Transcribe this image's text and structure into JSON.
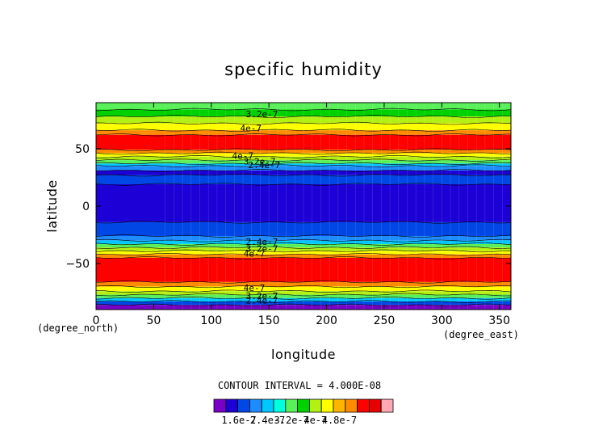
{
  "chart_data": {
    "type": "heatmap",
    "title": "specific humidity",
    "xlabel": "longitude",
    "ylabel": "latitude",
    "x_unit": "(degree_east)",
    "y_unit": "(degree_north)",
    "xlim": [
      0,
      360
    ],
    "ylim": [
      -90,
      90
    ],
    "x_ticks": [
      0,
      50,
      100,
      150,
      200,
      250,
      300,
      350
    ],
    "y_ticks": [
      -50,
      0,
      50
    ],
    "contour_interval_label": "CONTOUR INTERVAL = 4.000E-08",
    "colorbar_labels": [
      "1.6e-7",
      "2.4e-7",
      "3.2e-7",
      "4e-7",
      "4.8e-7"
    ],
    "colorbar_colors": [
      "#7a00c8",
      "#1c00d6",
      "#0047e6",
      "#1e8cff",
      "#00c8ff",
      "#00ffdc",
      "#5af05a",
      "#00d200",
      "#b4f014",
      "#ffff00",
      "#ffb400",
      "#ff8c00",
      "#ff0000",
      "#e60000",
      "#ffa8b4"
    ],
    "contour_labels": [
      {
        "text": "3.2e-7",
        "lon": 130,
        "lat": 80
      },
      {
        "text": "4e-7",
        "lon": 125,
        "lat": 68
      },
      {
        "text": "4e-7",
        "lon": 118,
        "lat": 44
      },
      {
        "text": "3.2e-7",
        "lon": 128,
        "lat": 39
      },
      {
        "text": "2.4e-7",
        "lon": 132,
        "lat": 36
      },
      {
        "text": "2.4e-7",
        "lon": 130,
        "lat": -31
      },
      {
        "text": "3.2e-7",
        "lon": 130,
        "lat": -37
      },
      {
        "text": "4e-7",
        "lon": 128,
        "lat": -41
      },
      {
        "text": "4e-7",
        "lon": 128,
        "lat": -71
      },
      {
        "text": "3.2e-7",
        "lon": 130,
        "lat": -78
      },
      {
        "text": "2.4e-7",
        "lon": 130,
        "lat": -82
      }
    ],
    "bands": [
      {
        "lat_top": 90,
        "lat_bottom": 84,
        "level": 6
      },
      {
        "lat_top": 84,
        "lat_bottom": 78,
        "level": 7
      },
      {
        "lat_top": 78,
        "lat_bottom": 72,
        "level": 8
      },
      {
        "lat_top": 72,
        "lat_bottom": 66,
        "level": 9
      },
      {
        "lat_top": 66,
        "lat_bottom": 62,
        "level": 11
      },
      {
        "lat_top": 62,
        "lat_bottom": 49,
        "level": 12
      },
      {
        "lat_top": 49,
        "lat_bottom": 46,
        "level": 11
      },
      {
        "lat_top": 46,
        "lat_bottom": 43,
        "level": 9
      },
      {
        "lat_top": 43,
        "lat_bottom": 40,
        "level": 8
      },
      {
        "lat_top": 40,
        "lat_bottom": 37,
        "level": 6
      },
      {
        "lat_top": 37,
        "lat_bottom": 35,
        "level": 4
      },
      {
        "lat_top": 35,
        "lat_bottom": 31,
        "level": 3
      },
      {
        "lat_top": 31,
        "lat_bottom": 27,
        "level": 1
      },
      {
        "lat_top": 27,
        "lat_bottom": 19,
        "level": 2
      },
      {
        "lat_top": 19,
        "lat_bottom": -14,
        "level": 1
      },
      {
        "lat_top": -14,
        "lat_bottom": -26,
        "level": 2
      },
      {
        "lat_top": -26,
        "lat_bottom": -30,
        "level": 3
      },
      {
        "lat_top": -30,
        "lat_bottom": -33,
        "level": 4
      },
      {
        "lat_top": -33,
        "lat_bottom": -36,
        "level": 6
      },
      {
        "lat_top": -36,
        "lat_bottom": -39,
        "level": 8
      },
      {
        "lat_top": -39,
        "lat_bottom": -42,
        "level": 9
      },
      {
        "lat_top": -42,
        "lat_bottom": -45,
        "level": 11
      },
      {
        "lat_top": -45,
        "lat_bottom": -66,
        "level": 12
      },
      {
        "lat_top": -66,
        "lat_bottom": -70,
        "level": 11
      },
      {
        "lat_top": -70,
        "lat_bottom": -74,
        "level": 9
      },
      {
        "lat_top": -74,
        "lat_bottom": -77,
        "level": 8
      },
      {
        "lat_top": -77,
        "lat_bottom": -80,
        "level": 6
      },
      {
        "lat_top": -80,
        "lat_bottom": -83,
        "level": 4
      },
      {
        "lat_top": -83,
        "lat_bottom": -86,
        "level": 2
      },
      {
        "lat_top": -86,
        "lat_bottom": -90,
        "level": 0
      }
    ]
  }
}
